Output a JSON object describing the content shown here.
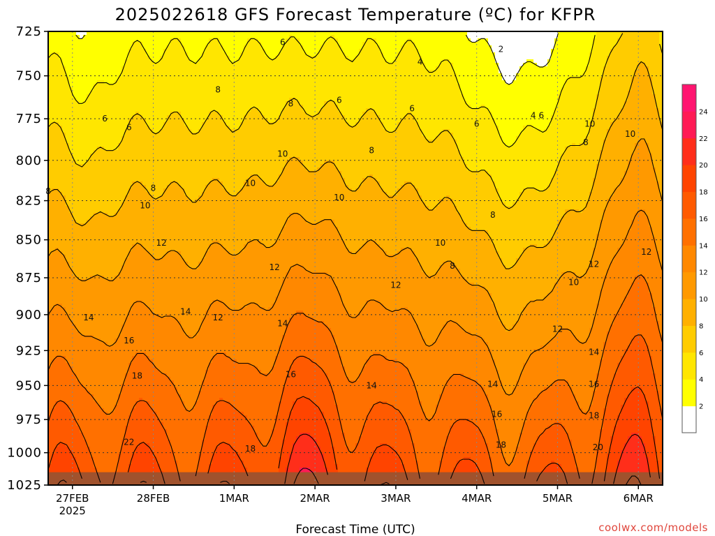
{
  "chart_data": {
    "type": "heatmap",
    "title": "2025022618 GFS Forecast Temperature (ºC) for KFPR",
    "xlabel": "Forecast Time (UTC)",
    "credit": "coolwx.com/models",
    "x_ticks": [
      {
        "label": "27FEB",
        "sublabel": "2025",
        "day": 0.3
      },
      {
        "label": "28FEB",
        "sublabel": "",
        "day": 1.3
      },
      {
        "label": "1MAR",
        "sublabel": "",
        "day": 2.3
      },
      {
        "label": "2MAR",
        "sublabel": "",
        "day": 3.3
      },
      {
        "label": "3MAR",
        "sublabel": "",
        "day": 4.3
      },
      {
        "label": "4MAR",
        "sublabel": "",
        "day": 5.3
      },
      {
        "label": "5MAR",
        "sublabel": "",
        "day": 6.3
      },
      {
        "label": "6MAR",
        "sublabel": "",
        "day": 7.3
      }
    ],
    "xlim": [
      0,
      7.6
    ],
    "y_label_values": [
      "725",
      "750",
      "775",
      "800",
      "825",
      "850",
      "875",
      "900",
      "925",
      "950",
      "975",
      "1000",
      "1025"
    ],
    "ylim": [
      725,
      1025
    ],
    "colorbar": {
      "levels": [
        0,
        2,
        4,
        6,
        8,
        10,
        12,
        14,
        16,
        18,
        20,
        22,
        24,
        26
      ],
      "tick_labels": [
        "2",
        "4",
        "6",
        "8",
        "10",
        "12",
        "14",
        "16",
        "18",
        "20",
        "22",
        "24"
      ],
      "colors": [
        "#ffffff",
        "#ffff00",
        "#ffe600",
        "#ffcc00",
        "#ffb000",
        "#ff9900",
        "#ff8800",
        "#ff7000",
        "#ff5a00",
        "#ff4400",
        "#ff2e1a",
        "#ff1a55",
        "#ff1570"
      ]
    },
    "contour_labels": [
      {
        "text": "6",
        "day": 2.9,
        "p": 731
      },
      {
        "text": "4",
        "day": 4.6,
        "p": 742
      },
      {
        "text": "2",
        "day": 5.6,
        "p": 735
      },
      {
        "text": "6",
        "day": 0.7,
        "p": 775
      },
      {
        "text": "6",
        "day": 1.0,
        "p": 780
      },
      {
        "text": "8",
        "day": 2.1,
        "p": 758
      },
      {
        "text": "6",
        "day": 3.6,
        "p": 764
      },
      {
        "text": "8",
        "day": 3.0,
        "p": 766
      },
      {
        "text": "6",
        "day": 4.5,
        "p": 769
      },
      {
        "text": "4",
        "day": 6.0,
        "p": 773
      },
      {
        "text": "6",
        "day": 6.1,
        "p": 773
      },
      {
        "text": "6",
        "day": 5.3,
        "p": 778
      },
      {
        "text": "10",
        "day": 6.7,
        "p": 778
      },
      {
        "text": "10",
        "day": 7.2,
        "p": 784
      },
      {
        "text": "8",
        "day": 6.65,
        "p": 789
      },
      {
        "text": "8",
        "day": 4.0,
        "p": 794
      },
      {
        "text": "8",
        "day": 0.0,
        "p": 819
      },
      {
        "text": "8",
        "day": 1.3,
        "p": 817
      },
      {
        "text": "10",
        "day": 2.5,
        "p": 814
      },
      {
        "text": "10",
        "day": 2.9,
        "p": 796
      },
      {
        "text": "10",
        "day": 1.2,
        "p": 828
      },
      {
        "text": "10",
        "day": 3.6,
        "p": 823
      },
      {
        "text": "8",
        "day": 5.5,
        "p": 834
      },
      {
        "text": "12",
        "day": 1.4,
        "p": 852
      },
      {
        "text": "10",
        "day": 4.85,
        "p": 852
      },
      {
        "text": "8",
        "day": 5.0,
        "p": 867
      },
      {
        "text": "12",
        "day": 2.8,
        "p": 868
      },
      {
        "text": "12",
        "day": 4.3,
        "p": 880
      },
      {
        "text": "12",
        "day": 6.75,
        "p": 866
      },
      {
        "text": "12",
        "day": 7.4,
        "p": 858
      },
      {
        "text": "10",
        "day": 6.5,
        "p": 878
      },
      {
        "text": "14",
        "day": 0.5,
        "p": 902
      },
      {
        "text": "14",
        "day": 1.7,
        "p": 898
      },
      {
        "text": "12",
        "day": 2.1,
        "p": 902
      },
      {
        "text": "14",
        "day": 2.9,
        "p": 906
      },
      {
        "text": "12",
        "day": 6.3,
        "p": 910
      },
      {
        "text": "16",
        "day": 1.0,
        "p": 918
      },
      {
        "text": "14",
        "day": 6.75,
        "p": 926
      },
      {
        "text": "18",
        "day": 1.1,
        "p": 943
      },
      {
        "text": "16",
        "day": 3.0,
        "p": 942
      },
      {
        "text": "14",
        "day": 4.0,
        "p": 950
      },
      {
        "text": "14",
        "day": 5.5,
        "p": 949
      },
      {
        "text": "16",
        "day": 6.75,
        "p": 949
      },
      {
        "text": "16",
        "day": 5.55,
        "p": 971
      },
      {
        "text": "18",
        "day": 6.75,
        "p": 972
      },
      {
        "text": "22",
        "day": 1.0,
        "p": 992
      },
      {
        "text": "18",
        "day": 2.5,
        "p": 997
      },
      {
        "text": "18",
        "day": 5.6,
        "p": 994
      },
      {
        "text": "20",
        "day": 6.8,
        "p": 996
      }
    ]
  }
}
